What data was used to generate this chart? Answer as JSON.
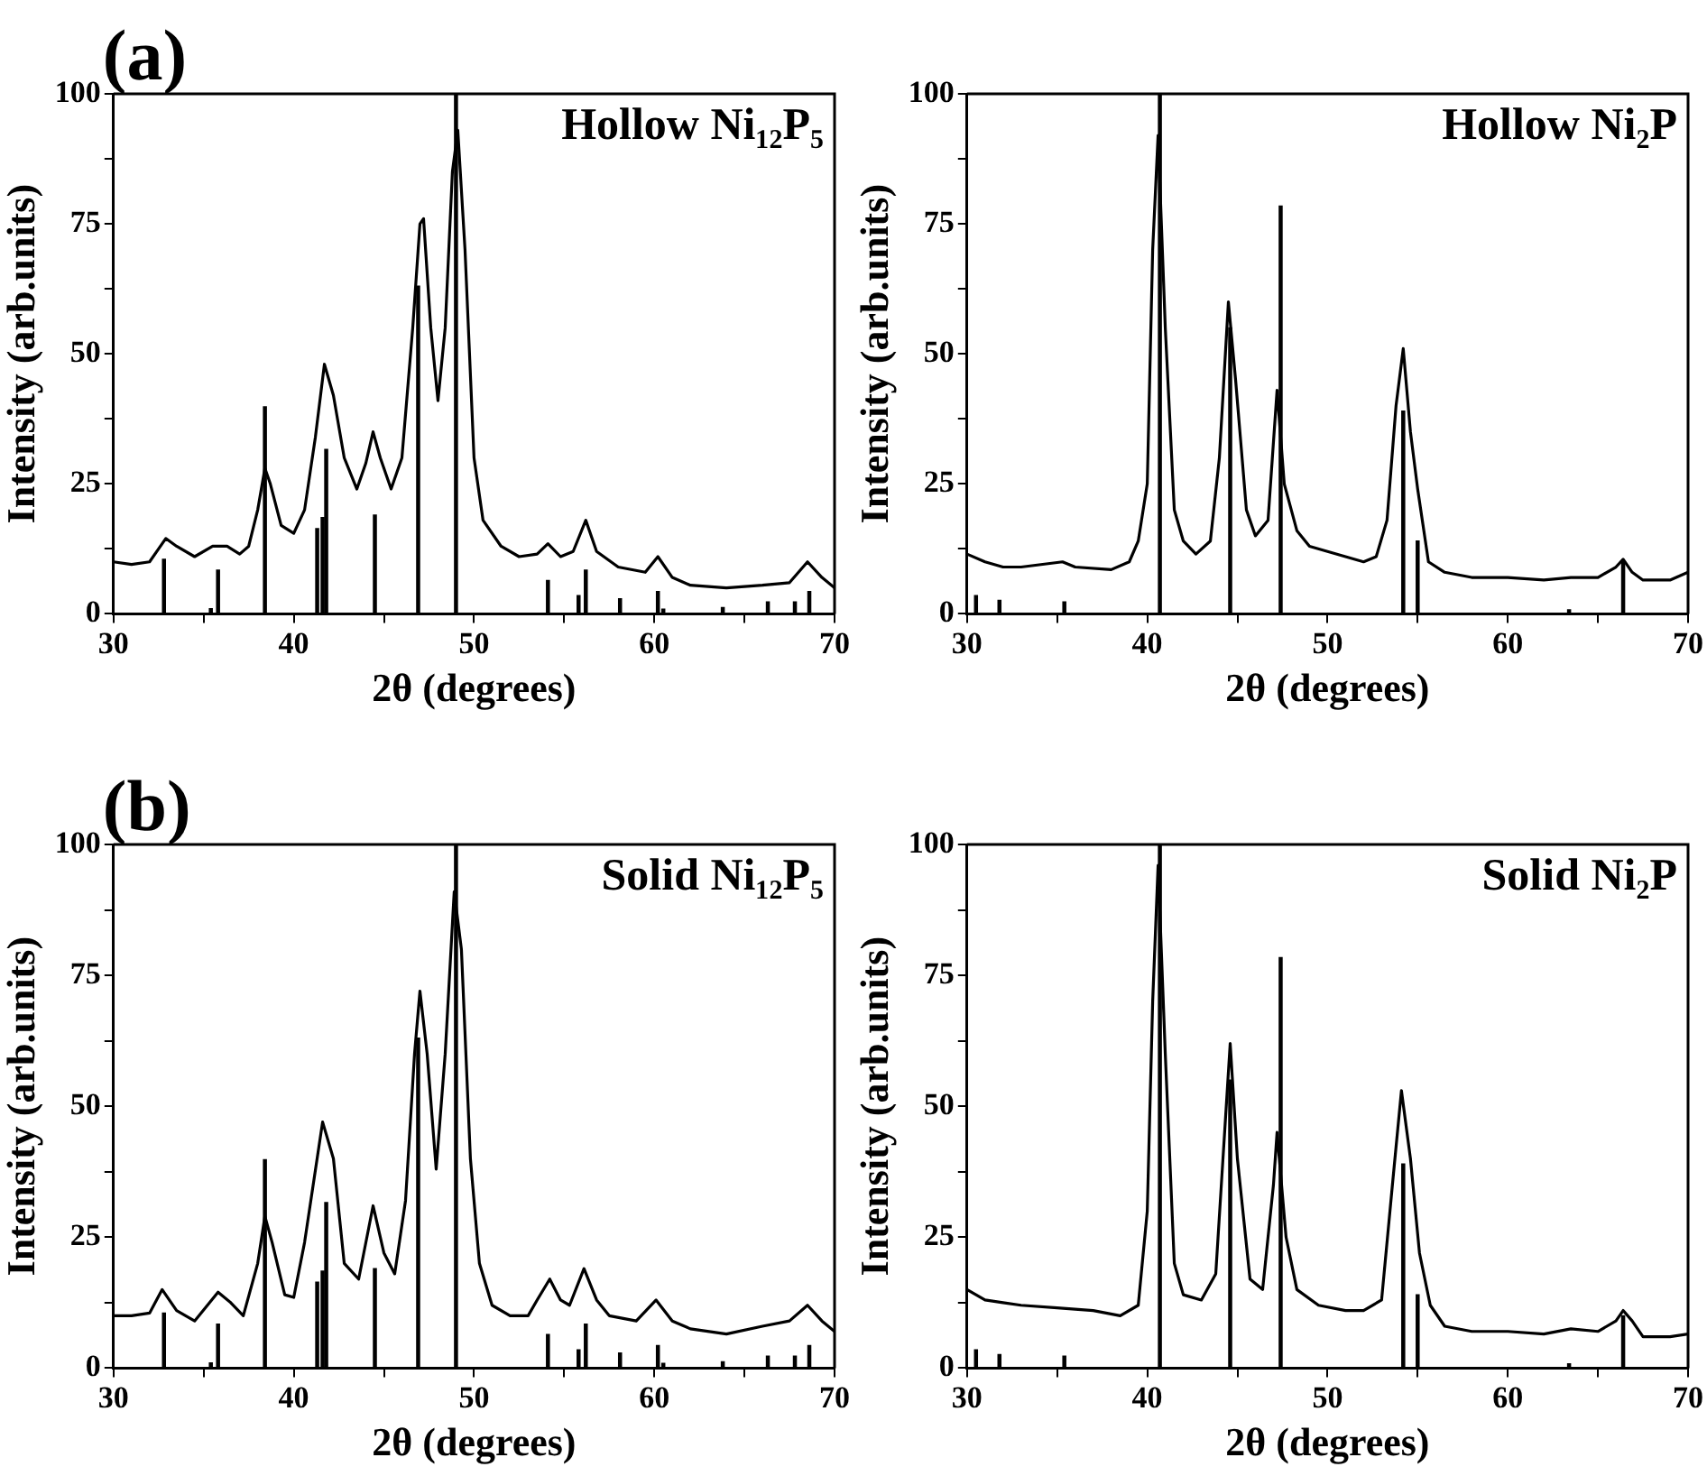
{
  "chart_data": [
    {
      "type": "line",
      "title": "Hollow Ni₁₂P₅",
      "annotations": [
        "(a)"
      ],
      "xlabel": "2θ (degrees)",
      "ylabel": "Intensity (arb.units)",
      "xlim": [
        30,
        70
      ],
      "ylim": [
        0,
        100
      ],
      "xticks": [
        30,
        {
          "value": 35,
          "label": null
        },
        40,
        {
          "value": 45,
          "label": null
        },
        50,
        {
          "value": 55,
          "label": null
        },
        60,
        {
          "value": 65,
          "label": null
        },
        70
      ],
      "yticks": [
        0,
        {
          "value": 12.5,
          "label": null
        },
        25,
        {
          "value": 37.5,
          "label": null
        },
        50,
        {
          "value": 62.5,
          "label": null
        },
        75,
        {
          "value": 87.5,
          "label": null
        },
        100
      ],
      "marker": "none",
      "series": [
        {
          "color": "#000000",
          "x": [
            30,
            31,
            32,
            32.5,
            32.9,
            33.5,
            34.5,
            35.5,
            36.3,
            37,
            37.5,
            38,
            38.4,
            38.7,
            39.3,
            40,
            40.6,
            41.2,
            41.7,
            42.2,
            42.8,
            43.5,
            44,
            44.4,
            44.8,
            45.4,
            46,
            46.6,
            47,
            47.2,
            47.6,
            48,
            48.4,
            48.8,
            49.1,
            49.5,
            50,
            50.5,
            51.5,
            52.5,
            53.5,
            54.1,
            54.8,
            55.5,
            56.2,
            56.8,
            58,
            59.5,
            60.2,
            61,
            62,
            64,
            66,
            67.5,
            68.5,
            69.3,
            70
          ],
          "values": [
            10,
            9.5,
            10,
            12.5,
            14.5,
            13,
            11,
            13,
            13,
            11.5,
            13,
            20,
            28,
            25,
            17,
            15.5,
            20,
            34,
            48,
            42,
            30,
            24,
            29,
            35,
            30,
            24,
            30,
            55,
            75,
            76,
            55,
            41,
            55,
            85,
            93,
            70,
            30,
            18,
            13,
            11,
            11.5,
            13.5,
            11,
            12,
            18,
            12,
            9,
            8,
            11,
            7,
            5.5,
            5,
            5.5,
            6,
            10,
            7,
            5
          ]
        },
        {
          "type": "bar",
          "color": "#000000",
          "x": [
            32.8,
            35.4,
            35.8,
            38.4,
            41.3,
            41.6,
            41.8,
            44.5,
            46.9,
            49,
            54.1,
            55.8,
            56.2,
            58.1,
            60.2,
            60.5,
            63.8,
            66.3,
            67.8,
            68.6
          ],
          "values": [
            10.5,
            1,
            8.4,
            39.8,
            16.4,
            18.5,
            31.6,
            19,
            63,
            100,
            6.4,
            3.5,
            8.4,
            2.9,
            4.3,
            0.9,
            1.2,
            2.3,
            2.3,
            4.3
          ]
        }
      ]
    },
    {
      "type": "line",
      "title": "Hollow Ni₂P",
      "xlabel": "2θ (degrees)",
      "ylabel": "Intensity (arb.units)",
      "xlim": [
        30,
        70
      ],
      "ylim": [
        0,
        100
      ],
      "xticks": [
        30,
        {
          "value": 35,
          "label": null
        },
        40,
        {
          "value": 45,
          "label": null
        },
        50,
        {
          "value": 55,
          "label": null
        },
        60,
        {
          "value": 65,
          "label": null
        },
        70
      ],
      "yticks": [
        0,
        {
          "value": 12.5,
          "label": null
        },
        25,
        {
          "value": 37.5,
          "label": null
        },
        50,
        {
          "value": 62.5,
          "label": null
        },
        75,
        {
          "value": 87.5,
          "label": null
        },
        100
      ],
      "marker": "none",
      "series": [
        {
          "color": "#000000",
          "x": [
            30,
            31,
            32,
            33,
            35.3,
            36,
            38,
            39,
            39.5,
            40,
            40.3,
            40.6,
            41,
            41.5,
            42,
            42.7,
            43.5,
            44,
            44.5,
            44.9,
            45.5,
            46,
            46.7,
            47.2,
            47.6,
            48.3,
            49,
            50,
            51,
            52,
            52.7,
            53.3,
            53.8,
            54.2,
            54.6,
            55,
            55.6,
            56.5,
            58,
            60,
            62,
            63.5,
            65,
            66,
            66.4,
            66.9,
            67.5,
            69,
            70
          ],
          "values": [
            11.5,
            10,
            9,
            9,
            10,
            9,
            8.5,
            10,
            14,
            25,
            70,
            92,
            55,
            20,
            14,
            11.5,
            14,
            30,
            60,
            45,
            20,
            15,
            18,
            43,
            25,
            16,
            13,
            12,
            11,
            10,
            11,
            18,
            40,
            51,
            35,
            24,
            10,
            8,
            7,
            7,
            6.5,
            7,
            7,
            9,
            10.5,
            8,
            6.5,
            6.5,
            8
          ]
        },
        {
          "type": "bar",
          "color": "#000000",
          "x": [
            30.5,
            31.8,
            35.4,
            40.7,
            44.6,
            47.4,
            54.2,
            55,
            63.4,
            66.4
          ],
          "values": [
            3.5,
            2.6,
            2.3,
            100,
            55,
            78.4,
            39,
            14,
            0.8,
            10
          ]
        }
      ]
    },
    {
      "type": "line",
      "title": "Solid Ni₁₂P₅",
      "annotations": [
        "(b)"
      ],
      "xlabel": "2θ (degrees)",
      "ylabel": "Intensity (arb.units)",
      "xlim": [
        30,
        70
      ],
      "ylim": [
        0,
        100
      ],
      "xticks": [
        30,
        {
          "value": 35,
          "label": null
        },
        40,
        {
          "value": 45,
          "label": null
        },
        50,
        {
          "value": 55,
          "label": null
        },
        60,
        {
          "value": 65,
          "label": null
        },
        70
      ],
      "yticks": [
        0,
        {
          "value": 12.5,
          "label": null
        },
        25,
        {
          "value": 37.5,
          "label": null
        },
        50,
        {
          "value": 62.5,
          "label": null
        },
        75,
        {
          "value": 87.5,
          "label": null
        },
        100
      ],
      "marker": "none",
      "series": [
        {
          "color": "#000000",
          "x": [
            30,
            31,
            32,
            32.7,
            33.5,
            34.5,
            35.8,
            36.5,
            37.2,
            38,
            38.4,
            38.8,
            39.5,
            40,
            40.6,
            41.6,
            42.2,
            42.8,
            43.6,
            44.4,
            45,
            45.6,
            46.2,
            46.7,
            47,
            47.4,
            47.9,
            48.4,
            48.9,
            49.3,
            49.8,
            50.3,
            51,
            52,
            53,
            53.5,
            54.2,
            54.8,
            55.3,
            56.1,
            56.8,
            57.5,
            59,
            60.1,
            61,
            62,
            64,
            66,
            67.5,
            68.5,
            69.3,
            70
          ],
          "values": [
            10,
            10,
            10.5,
            15,
            11,
            9,
            14.5,
            12.5,
            10,
            20,
            29,
            24,
            14,
            13.5,
            24,
            47,
            40,
            20,
            17,
            31,
            22,
            18,
            32,
            60,
            72,
            60,
            38,
            60,
            91,
            80,
            40,
            20,
            12,
            10,
            10,
            13,
            17,
            13,
            12,
            19,
            13,
            10,
            9,
            13,
            9,
            7.5,
            6.5,
            8,
            9,
            12,
            9,
            7
          ]
        },
        {
          "type": "bar",
          "color": "#000000",
          "x": [
            32.8,
            35.4,
            35.8,
            38.4,
            41.3,
            41.6,
            41.8,
            44.5,
            46.9,
            49,
            54.1,
            55.8,
            56.2,
            58.1,
            60.2,
            60.5,
            63.8,
            66.3,
            67.8,
            68.6
          ],
          "values": [
            10.5,
            1,
            8.4,
            39.8,
            16.4,
            18.5,
            31.6,
            19,
            63,
            100,
            6.4,
            3.5,
            8.4,
            2.9,
            4.3,
            0.9,
            1.2,
            2.3,
            2.3,
            4.3
          ]
        }
      ]
    },
    {
      "type": "line",
      "title": "Solid Ni₂P",
      "xlabel": "2θ (degrees)",
      "ylabel": "Intensity (arb.units)",
      "xlim": [
        30,
        70
      ],
      "ylim": [
        0,
        100
      ],
      "xticks": [
        30,
        {
          "value": 35,
          "label": null
        },
        40,
        {
          "value": 45,
          "label": null
        },
        50,
        {
          "value": 55,
          "label": null
        },
        60,
        {
          "value": 65,
          "label": null
        },
        70
      ],
      "yticks": [
        0,
        {
          "value": 12.5,
          "label": null
        },
        25,
        {
          "value": 37.5,
          "label": null
        },
        50,
        {
          "value": 62.5,
          "label": null
        },
        75,
        {
          "value": 87.5,
          "label": null
        },
        100
      ],
      "marker": "none",
      "series": [
        {
          "color": "#000000",
          "x": [
            30,
            31,
            32,
            33,
            35,
            37,
            38.5,
            39.5,
            40,
            40.3,
            40.6,
            41,
            41.5,
            42,
            43,
            43.8,
            44.2,
            44.6,
            45,
            45.7,
            46.4,
            47,
            47.2,
            47.7,
            48.3,
            49.5,
            51,
            52,
            53,
            53.6,
            54.1,
            54.6,
            55.1,
            55.7,
            56.5,
            58,
            60,
            62,
            63.5,
            65,
            66,
            66.4,
            66.9,
            67.5,
            69,
            70
          ],
          "values": [
            15,
            13,
            12.5,
            12,
            11.5,
            11,
            10,
            12,
            30,
            70,
            96,
            60,
            20,
            14,
            13,
            18,
            40,
            62,
            40,
            17,
            15,
            35,
            45,
            25,
            15,
            12,
            11,
            11,
            13,
            35,
            53,
            40,
            22,
            12,
            8,
            7,
            7,
            6.5,
            7.5,
            7,
            9,
            11,
            9,
            6,
            6,
            6.5
          ]
        },
        {
          "type": "bar",
          "color": "#000000",
          "x": [
            30.5,
            31.8,
            35.4,
            40.7,
            44.6,
            47.4,
            54.2,
            55,
            63.4,
            66.4
          ],
          "values": [
            3.5,
            2.6,
            2.3,
            100,
            55,
            78.4,
            39,
            14,
            0.8,
            10
          ]
        }
      ]
    }
  ]
}
